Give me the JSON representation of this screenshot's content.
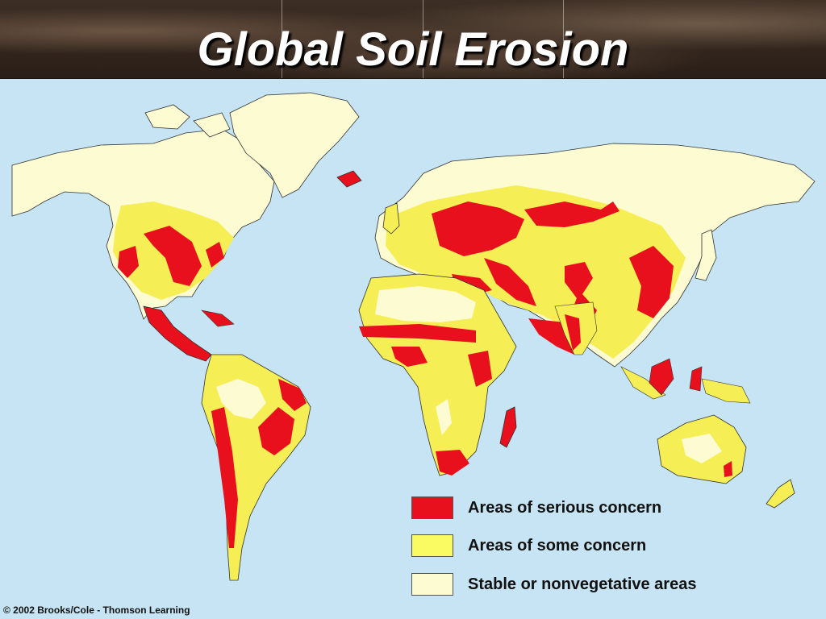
{
  "title": "Global Soil Erosion",
  "legend": [
    {
      "label": "Areas of serious concern",
      "color": "#e8101c"
    },
    {
      "label": "Areas of some concern",
      "color": "#fafa63"
    },
    {
      "label": "Stable or nonvegetative areas",
      "color": "#fdfbd2"
    }
  ],
  "credit": "© 2002 Brooks/Cole - Thomson Learning",
  "colors": {
    "ocean": "#c6e4f3",
    "land_stable": "#fdfbd2",
    "some_concern": "#f6ee55",
    "serious": "#e8101c"
  }
}
